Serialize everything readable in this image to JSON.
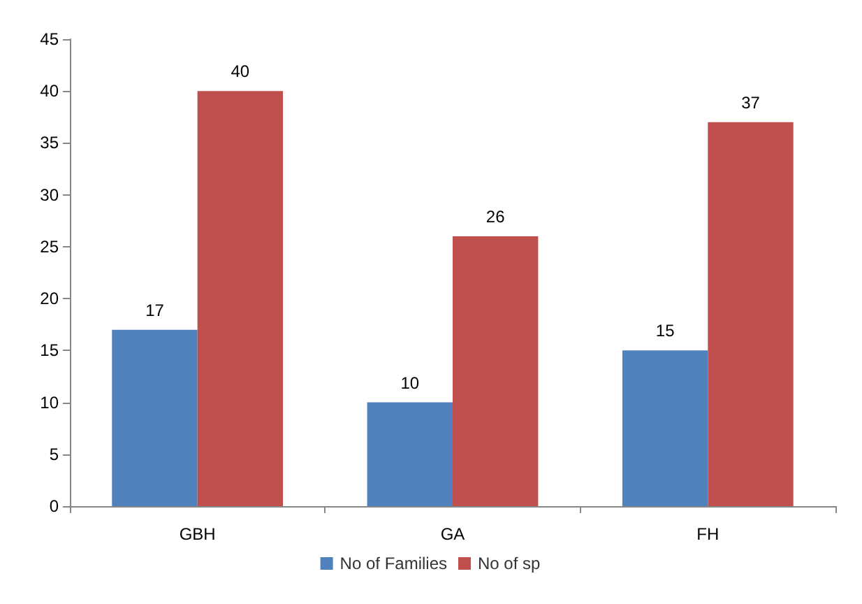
{
  "chart_data": {
    "type": "bar",
    "categories": [
      "GBH",
      "GA",
      "FH"
    ],
    "series": [
      {
        "name": "No of Families",
        "color": "#4f81bd",
        "values": [
          17,
          10,
          15
        ]
      },
      {
        "name": "No of sp",
        "color": "#c0504d",
        "values": [
          40,
          26,
          37
        ]
      }
    ],
    "ylim": [
      0,
      45
    ],
    "yticks": [
      0,
      5,
      10,
      15,
      20,
      25,
      30,
      35,
      40,
      45
    ],
    "grid": false,
    "legend": "bottom",
    "data_labels": true
  }
}
